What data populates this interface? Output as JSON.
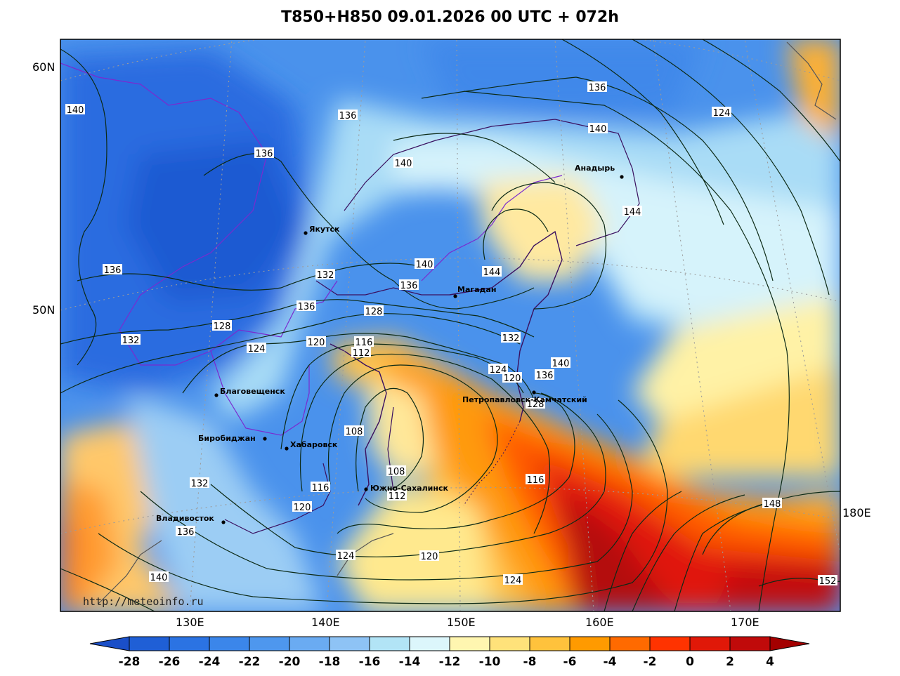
{
  "title": "T850+H850 09.01.2026 00 UTC + 072h",
  "watermark": "http://meteoinfo.ru",
  "lat_labels": [
    "60N",
    "50N"
  ],
  "lon_labels": [
    "130E",
    "140E",
    "150E",
    "160E",
    "170E",
    "180E"
  ],
  "cities": [
    {
      "name": "Якутск"
    },
    {
      "name": "Магадан"
    },
    {
      "name": "Анадырь"
    },
    {
      "name": "Благовещенск"
    },
    {
      "name": "Биробиджан"
    },
    {
      "name": "Хабаровск"
    },
    {
      "name": "Владивосток"
    },
    {
      "name": "Южно-Сахалинск"
    },
    {
      "name": "Петропавловск-Камчатский"
    }
  ],
  "contour_labels": [
    "140",
    "136",
    "136",
    "136",
    "140",
    "124",
    "140",
    "144",
    "136",
    "132",
    "136",
    "140",
    "144",
    "136",
    "128",
    "132",
    "128",
    "124",
    "120",
    "116",
    "112",
    "132",
    "124",
    "120",
    "136",
    "140",
    "128",
    "108",
    "108",
    "116",
    "112",
    "116",
    "132",
    "120",
    "136",
    "124",
    "120",
    "124",
    "148",
    "152",
    "140"
  ],
  "colorbar": {
    "ticks": [
      "-28",
      "-26",
      "-24",
      "-22",
      "-20",
      "-18",
      "-16",
      "-14",
      "-12",
      "-10",
      "-8",
      "-6",
      "-4",
      "-2",
      "0",
      "2",
      "4"
    ],
    "colors": [
      "#1f5fd6",
      "#2b73e3",
      "#3b86ea",
      "#4e97ee",
      "#6aabf2",
      "#8ec3f5",
      "#b2e4f6",
      "#dcf6fb",
      "#fff6b0",
      "#ffe27a",
      "#ffc23c",
      "#ff9a00",
      "#ff6a00",
      "#ff3300",
      "#e01808",
      "#c00a0a"
    ],
    "end_low": "#1a4fc8",
    "end_high": "#a40000"
  }
}
